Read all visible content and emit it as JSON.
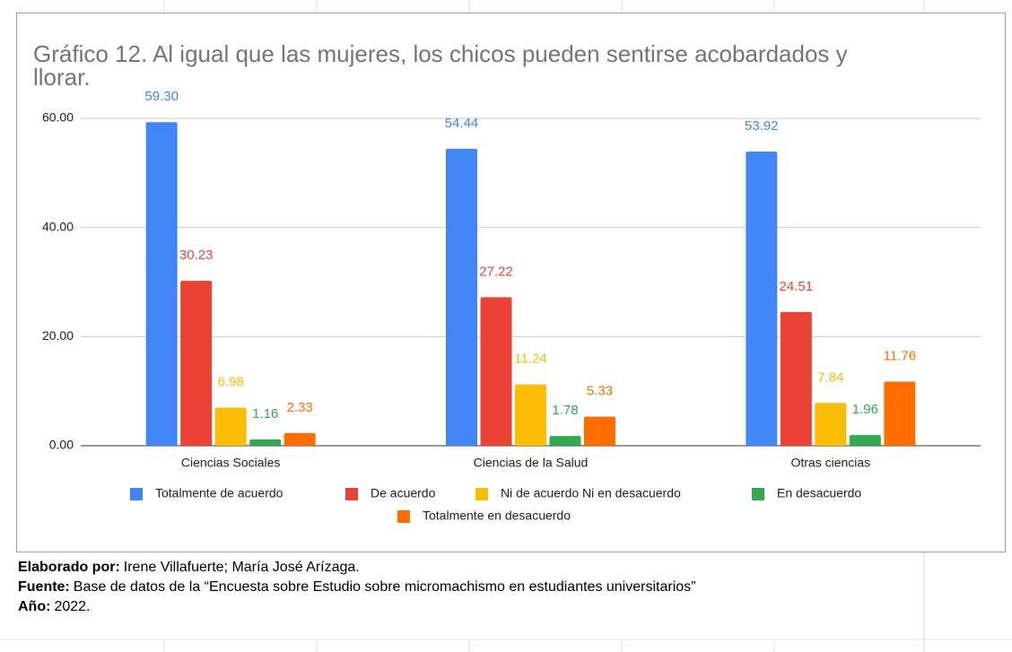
{
  "chart_data": {
    "type": "bar",
    "title": "Gráfico 12. Al igual que las mujeres, los chicos pueden sentirse acobardados y llorar.",
    "categories": [
      "Ciencias Sociales",
      "Ciencias de la Salud",
      "Otras ciencias"
    ],
    "series": [
      {
        "name": "Totalmente de acuerdo",
        "color": "#4285f4",
        "values": [
          59.3,
          54.44,
          53.92
        ],
        "value_labels": [
          "59.30",
          "54.44",
          "53.92"
        ]
      },
      {
        "name": "De acuerdo",
        "color": "#ea4335",
        "values": [
          30.23,
          27.22,
          24.51
        ],
        "value_labels": [
          "30.23",
          "27.22",
          "24.51"
        ]
      },
      {
        "name": "Ni de acuerdo Ni en desacuerdo",
        "color": "#fbbc04",
        "values": [
          6.98,
          11.24,
          7.84
        ],
        "value_labels": [
          "6.98",
          "11.24",
          "7.84"
        ]
      },
      {
        "name": "En desacuerdo",
        "color": "#34a853",
        "values": [
          1.16,
          1.78,
          1.96
        ],
        "value_labels": [
          "1.16",
          "1.78",
          "1.96"
        ]
      },
      {
        "name": "Totalmente en desacuerdo",
        "color": "#ff6d01",
        "values": [
          2.33,
          5.33,
          11.76
        ],
        "value_labels": [
          "2.33",
          "5.33",
          "11.76"
        ]
      }
    ],
    "ylim": [
      0,
      60
    ],
    "yticks": [
      {
        "value": 0,
        "label": "0.00"
      },
      {
        "value": 20,
        "label": "20.00"
      },
      {
        "value": 40,
        "label": "40.00"
      },
      {
        "value": 60,
        "label": "60.00"
      }
    ],
    "grid": true,
    "legend": "bottom"
  },
  "footer": [
    {
      "label": "Elaborado por:",
      "text": "Irene Villafuerte; María José Arízaga."
    },
    {
      "label": "Fuente:",
      "text": "Base de datos de la “Encuesta sobre Estudio sobre micromachismo en estudiantes universitarios”"
    },
    {
      "label": "Año:",
      "text": "2022."
    }
  ]
}
